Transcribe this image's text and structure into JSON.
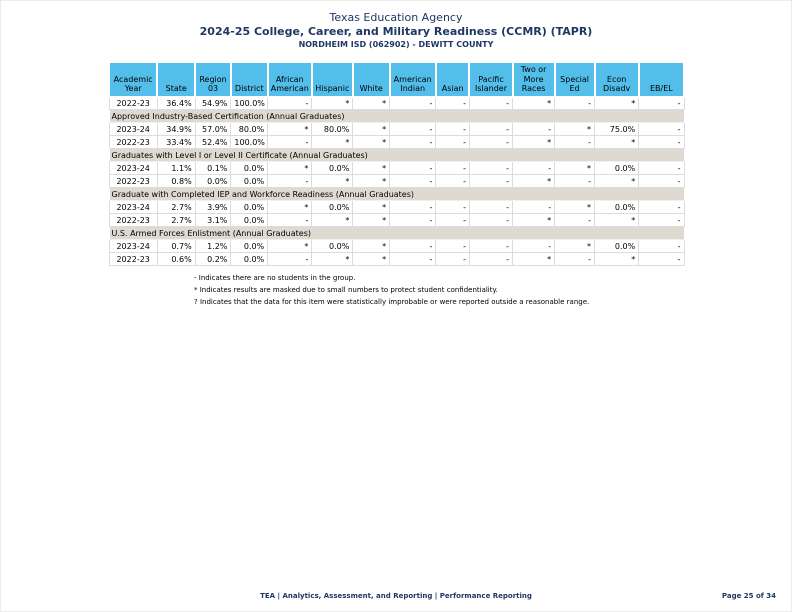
{
  "header": {
    "agency": "Texas Education Agency",
    "title": "2024-25 College, Career, and Military Readiness (CCMR) (TAPR)",
    "subtitle": "NORDHEIM ISD (062902) - DEWITT COUNTY"
  },
  "table": {
    "columns": [
      "Academic\nYear",
      "State",
      "Region\n03",
      "District",
      "African\nAmerican",
      "Hispanic",
      "White",
      "American\nIndian",
      "Asian",
      "Pacific\nIslander",
      "Two or\nMore\nRaces",
      "Special\nEd",
      "Econ\nDisadv",
      "EB/EL"
    ],
    "rows": [
      {
        "type": "data",
        "cells": [
          "2022-23",
          "36.4%",
          "54.9%",
          "100.0%",
          "-",
          "*",
          "*",
          "-",
          "-",
          "-",
          "*",
          "-",
          "*",
          "-"
        ]
      },
      {
        "type": "section",
        "label": "Approved Industry-Based Certification (Annual Graduates)"
      },
      {
        "type": "data",
        "cells": [
          "2023-24",
          "34.9%",
          "57.0%",
          "80.0%",
          "*",
          "80.0%",
          "*",
          "-",
          "-",
          "-",
          "-",
          "*",
          "75.0%",
          "-"
        ]
      },
      {
        "type": "data",
        "cells": [
          "2022-23",
          "33.4%",
          "52.4%",
          "100.0%",
          "-",
          "*",
          "*",
          "-",
          "-",
          "-",
          "*",
          "-",
          "*",
          "-"
        ]
      },
      {
        "type": "section",
        "label": "Graduates with Level I or Level II Certificate (Annual Graduates)"
      },
      {
        "type": "data",
        "cells": [
          "2023-24",
          "1.1%",
          "0.1%",
          "0.0%",
          "*",
          "0.0%",
          "*",
          "-",
          "-",
          "-",
          "-",
          "*",
          "0.0%",
          "-"
        ]
      },
      {
        "type": "data",
        "cells": [
          "2022-23",
          "0.8%",
          "0.0%",
          "0.0%",
          "-",
          "*",
          "*",
          "-",
          "-",
          "-",
          "*",
          "-",
          "*",
          "-"
        ]
      },
      {
        "type": "section",
        "label": "Graduate with Completed IEP and Workforce Readiness (Annual Graduates)"
      },
      {
        "type": "data",
        "cells": [
          "2023-24",
          "2.7%",
          "3.9%",
          "0.0%",
          "*",
          "0.0%",
          "*",
          "-",
          "-",
          "-",
          "-",
          "*",
          "0.0%",
          "-"
        ]
      },
      {
        "type": "data",
        "cells": [
          "2022-23",
          "2.7%",
          "3.1%",
          "0.0%",
          "-",
          "*",
          "*",
          "-",
          "-",
          "-",
          "*",
          "-",
          "*",
          "-"
        ]
      },
      {
        "type": "section",
        "label": "U.S. Armed Forces Enlistment (Annual Graduates)"
      },
      {
        "type": "data",
        "cells": [
          "2023-24",
          "0.7%",
          "1.2%",
          "0.0%",
          "*",
          "0.0%",
          "*",
          "-",
          "-",
          "-",
          "-",
          "*",
          "0.0%",
          "-"
        ]
      },
      {
        "type": "data",
        "cells": [
          "2022-23",
          "0.6%",
          "0.2%",
          "0.0%",
          "-",
          "*",
          "*",
          "-",
          "-",
          "-",
          "*",
          "-",
          "*",
          "-"
        ]
      }
    ]
  },
  "footnotes": [
    "- Indicates there are no students in the group.",
    "* Indicates results are masked due to small numbers to protect student confidentiality.",
    "? Indicates that the data for this item were statistically improbable or were reported outside a reasonable range."
  ],
  "footer": {
    "center": "TEA | Analytics, Assessment, and Reporting | Performance Reporting",
    "right": "Page 25 of 34"
  },
  "colors": {
    "header_blue": "#53BEE9",
    "section_beige": "#DEDAD2",
    "navy": "#1F3864"
  }
}
